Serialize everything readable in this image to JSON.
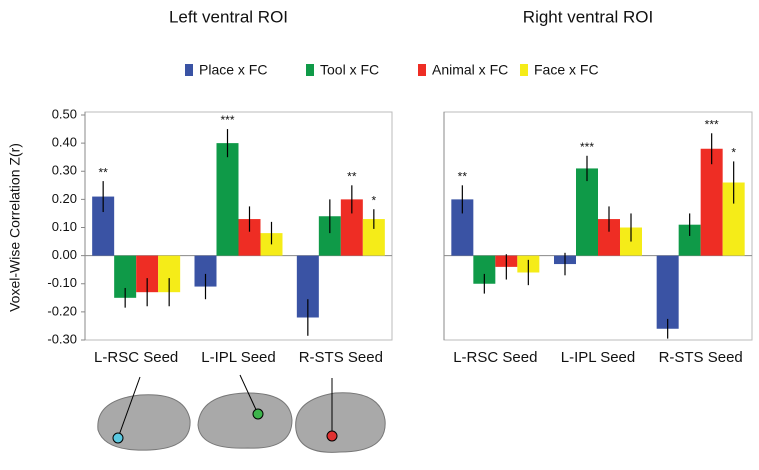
{
  "chart_data": [
    {
      "type": "bar",
      "title": "Left ventral ROI",
      "ylabel": "Voxel-Wise Correlation Z(r)",
      "categories": [
        "L-RSC Seed",
        "L-IPL Seed",
        "R-STS Seed"
      ],
      "ylim": [
        -0.3,
        0.5
      ],
      "yticks": [
        {
          "value": -0.3,
          "label": "-0.30"
        },
        {
          "value": -0.2,
          "label": "-0.20"
        },
        {
          "value": -0.1,
          "label": "-0.10"
        },
        {
          "value": 0,
          "label": "0.00"
        },
        {
          "value": 0.1,
          "label": "0.10"
        },
        {
          "value": 0.2,
          "label": "0.20"
        },
        {
          "value": 0.3,
          "label": "0.30"
        },
        {
          "value": 0.4,
          "label": "0.40"
        },
        {
          "value": 0.5,
          "label": "0.50"
        }
      ],
      "series": [
        {
          "name": "Place x FC",
          "color": "#3a53a4",
          "values": [
            0.21,
            -0.11,
            -0.22
          ],
          "errors": [
            0.055,
            0.045,
            0.065
          ],
          "significance": [
            "**",
            null,
            null
          ]
        },
        {
          "name": "Tool x FC",
          "color": "#0f9a48",
          "values": [
            -0.15,
            0.4,
            0.14
          ],
          "errors": [
            0.035,
            0.05,
            0.06
          ],
          "significance": [
            null,
            "***",
            null
          ]
        },
        {
          "name": "Animal x FC",
          "color": "#ee2d24",
          "values": [
            -0.13,
            0.13,
            0.2
          ],
          "errors": [
            0.05,
            0.045,
            0.05
          ],
          "significance": [
            null,
            null,
            "**"
          ]
        },
        {
          "name": "Face x FC",
          "color": "#f5ec18",
          "values": [
            -0.13,
            0.08,
            0.13
          ],
          "errors": [
            0.05,
            0.04,
            0.035
          ],
          "significance": [
            null,
            null,
            "*"
          ]
        }
      ]
    },
    {
      "type": "bar",
      "title": "Right ventral ROI",
      "categories": [
        "L-RSC Seed",
        "L-IPL Seed",
        "R-STS Seed"
      ],
      "ylim": [
        -0.3,
        0.5
      ],
      "series": [
        {
          "color": "#3a53a4",
          "values": [
            0.2,
            -0.03,
            -0.26
          ],
          "errors": [
            0.05,
            0.04,
            0.035
          ],
          "significance": [
            "**",
            null,
            null
          ]
        },
        {
          "color": "#0f9a48",
          "values": [
            -0.1,
            0.31,
            0.11
          ],
          "errors": [
            0.035,
            0.045,
            0.04
          ],
          "significance": [
            null,
            "***",
            null
          ]
        },
        {
          "color": "#ee2d24",
          "values": [
            -0.04,
            0.13,
            0.38
          ],
          "errors": [
            0.045,
            0.045,
            0.055
          ],
          "significance": [
            null,
            null,
            "***"
          ]
        },
        {
          "color": "#f5ec18",
          "values": [
            -0.06,
            0.1,
            0.26
          ],
          "errors": [
            0.045,
            0.05,
            0.075
          ],
          "significance": [
            null,
            null,
            "*"
          ]
        }
      ]
    }
  ]
}
